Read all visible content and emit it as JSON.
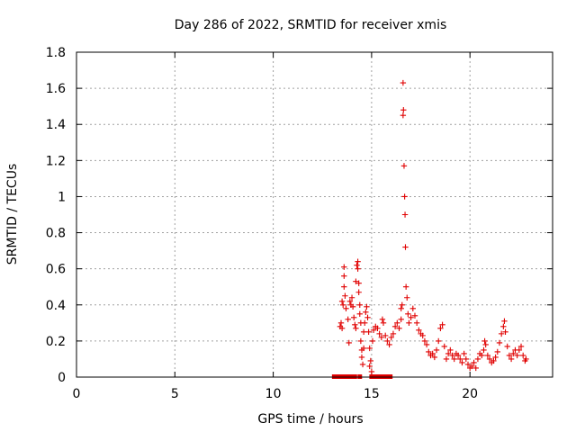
{
  "chart_data": {
    "type": "scatter",
    "title": "Day 286 of 2022, SRMTID for receiver xmis",
    "xlabel": "GPS time / hours",
    "ylabel": "SRMTID / TECUs",
    "xlim": [
      0,
      24.2
    ],
    "ylim": [
      0,
      1.8
    ],
    "x_ticks": [
      0,
      5,
      10,
      15,
      20
    ],
    "y_ticks": [
      0,
      0.2,
      0.4,
      0.6,
      0.8,
      1,
      1.2,
      1.4,
      1.6,
      1.8
    ],
    "x_tick_labels": [
      "0",
      "5",
      "10",
      "15",
      "20"
    ],
    "y_tick_labels": [
      "0",
      "0.2",
      "0.4",
      "0.6",
      "0.8",
      "1",
      "1.2",
      "1.4",
      "1.6",
      "1.8"
    ],
    "grid": true,
    "color": "#e00000",
    "marker": "plus",
    "series": [
      {
        "name": "SRMTID",
        "points": [
          [
            13.4,
            0.28
          ],
          [
            13.45,
            0.3
          ],
          [
            13.5,
            0.27
          ],
          [
            13.5,
            0.42
          ],
          [
            13.55,
            0.4
          ],
          [
            13.6,
            0.5
          ],
          [
            13.6,
            0.56
          ],
          [
            13.6,
            0.61
          ],
          [
            13.65,
            0.45
          ],
          [
            13.7,
            0.38
          ],
          [
            13.8,
            0.32
          ],
          [
            13.85,
            0.19
          ],
          [
            13.9,
            0.42
          ],
          [
            13.95,
            0.4
          ],
          [
            14.0,
            0.44
          ],
          [
            14.05,
            0.39
          ],
          [
            14.1,
            0.33
          ],
          [
            14.15,
            0.29
          ],
          [
            14.2,
            0.27
          ],
          [
            14.2,
            0.53
          ],
          [
            14.25,
            0.62
          ],
          [
            14.3,
            0.64
          ],
          [
            14.3,
            0.6
          ],
          [
            14.35,
            0.52
          ],
          [
            14.35,
            0.47
          ],
          [
            14.4,
            0.4
          ],
          [
            14.4,
            0.35
          ],
          [
            14.45,
            0.3
          ],
          [
            14.45,
            0.2
          ],
          [
            14.5,
            0.15
          ],
          [
            14.5,
            0.11
          ],
          [
            14.55,
            0.07
          ],
          [
            14.6,
            0.16
          ],
          [
            14.6,
            0.25
          ],
          [
            14.65,
            0.3
          ],
          [
            14.7,
            0.36
          ],
          [
            14.75,
            0.39
          ],
          [
            14.8,
            0.33
          ],
          [
            14.85,
            0.25
          ],
          [
            14.9,
            0.16
          ],
          [
            14.9,
            0.06
          ],
          [
            14.95,
            0.09
          ],
          [
            15.0,
            0.03
          ],
          [
            15.05,
            0.2
          ],
          [
            15.1,
            0.26
          ],
          [
            15.2,
            0.28
          ],
          [
            15.3,
            0.27
          ],
          [
            15.4,
            0.24
          ],
          [
            15.5,
            0.22
          ],
          [
            15.55,
            0.32
          ],
          [
            15.6,
            0.3
          ],
          [
            15.7,
            0.23
          ],
          [
            15.8,
            0.2
          ],
          [
            15.9,
            0.18
          ],
          [
            16.0,
            0.22
          ],
          [
            16.1,
            0.24
          ],
          [
            16.2,
            0.28
          ],
          [
            16.3,
            0.3
          ],
          [
            16.4,
            0.27
          ],
          [
            16.5,
            0.32
          ],
          [
            16.5,
            0.38
          ],
          [
            16.55,
            0.4
          ],
          [
            16.6,
            1.45
          ],
          [
            16.62,
            1.48
          ],
          [
            16.6,
            1.63
          ],
          [
            16.65,
            1.17
          ],
          [
            16.68,
            1.0
          ],
          [
            16.7,
            0.9
          ],
          [
            16.72,
            0.72
          ],
          [
            16.75,
            0.5
          ],
          [
            16.8,
            0.44
          ],
          [
            16.85,
            0.35
          ],
          [
            16.9,
            0.3
          ],
          [
            17.0,
            0.33
          ],
          [
            17.1,
            0.38
          ],
          [
            17.2,
            0.34
          ],
          [
            17.3,
            0.3
          ],
          [
            17.4,
            0.26
          ],
          [
            17.5,
            0.24
          ],
          [
            17.6,
            0.23
          ],
          [
            17.7,
            0.2
          ],
          [
            17.8,
            0.18
          ],
          [
            17.9,
            0.14
          ],
          [
            18.0,
            0.12
          ],
          [
            18.1,
            0.13
          ],
          [
            18.2,
            0.11
          ],
          [
            18.3,
            0.15
          ],
          [
            18.4,
            0.2
          ],
          [
            18.5,
            0.27
          ],
          [
            18.6,
            0.29
          ],
          [
            18.7,
            0.17
          ],
          [
            18.8,
            0.1
          ],
          [
            18.9,
            0.13
          ],
          [
            19.0,
            0.15
          ],
          [
            19.1,
            0.12
          ],
          [
            19.2,
            0.1
          ],
          [
            19.3,
            0.13
          ],
          [
            19.4,
            0.12
          ],
          [
            19.5,
            0.1
          ],
          [
            19.6,
            0.08
          ],
          [
            19.7,
            0.13
          ],
          [
            19.8,
            0.1
          ],
          [
            19.9,
            0.07
          ],
          [
            20.0,
            0.05
          ],
          [
            20.1,
            0.06
          ],
          [
            20.2,
            0.08
          ],
          [
            20.3,
            0.05
          ],
          [
            20.4,
            0.1
          ],
          [
            20.5,
            0.13
          ],
          [
            20.6,
            0.12
          ],
          [
            20.7,
            0.15
          ],
          [
            20.75,
            0.2
          ],
          [
            20.8,
            0.18
          ],
          [
            20.9,
            0.12
          ],
          [
            21.0,
            0.1
          ],
          [
            21.1,
            0.08
          ],
          [
            21.2,
            0.09
          ],
          [
            21.3,
            0.11
          ],
          [
            21.4,
            0.14
          ],
          [
            21.5,
            0.19
          ],
          [
            21.6,
            0.24
          ],
          [
            21.7,
            0.28
          ],
          [
            21.75,
            0.31
          ],
          [
            21.8,
            0.25
          ],
          [
            21.9,
            0.17
          ],
          [
            22.0,
            0.12
          ],
          [
            22.1,
            0.1
          ],
          [
            22.2,
            0.13
          ],
          [
            22.3,
            0.15
          ],
          [
            22.4,
            0.12
          ],
          [
            22.5,
            0.15
          ],
          [
            22.6,
            0.17
          ],
          [
            22.7,
            0.12
          ],
          [
            22.8,
            0.09
          ],
          [
            22.85,
            0.1
          ]
        ]
      }
    ],
    "zero_markers": {
      "name": "zero values",
      "x": [
        13.1,
        13.3,
        13.5,
        13.7,
        13.85,
        14.0,
        14.15,
        14.4,
        15.0,
        15.15,
        15.3,
        15.45,
        15.6,
        15.8,
        15.95
      ]
    }
  }
}
